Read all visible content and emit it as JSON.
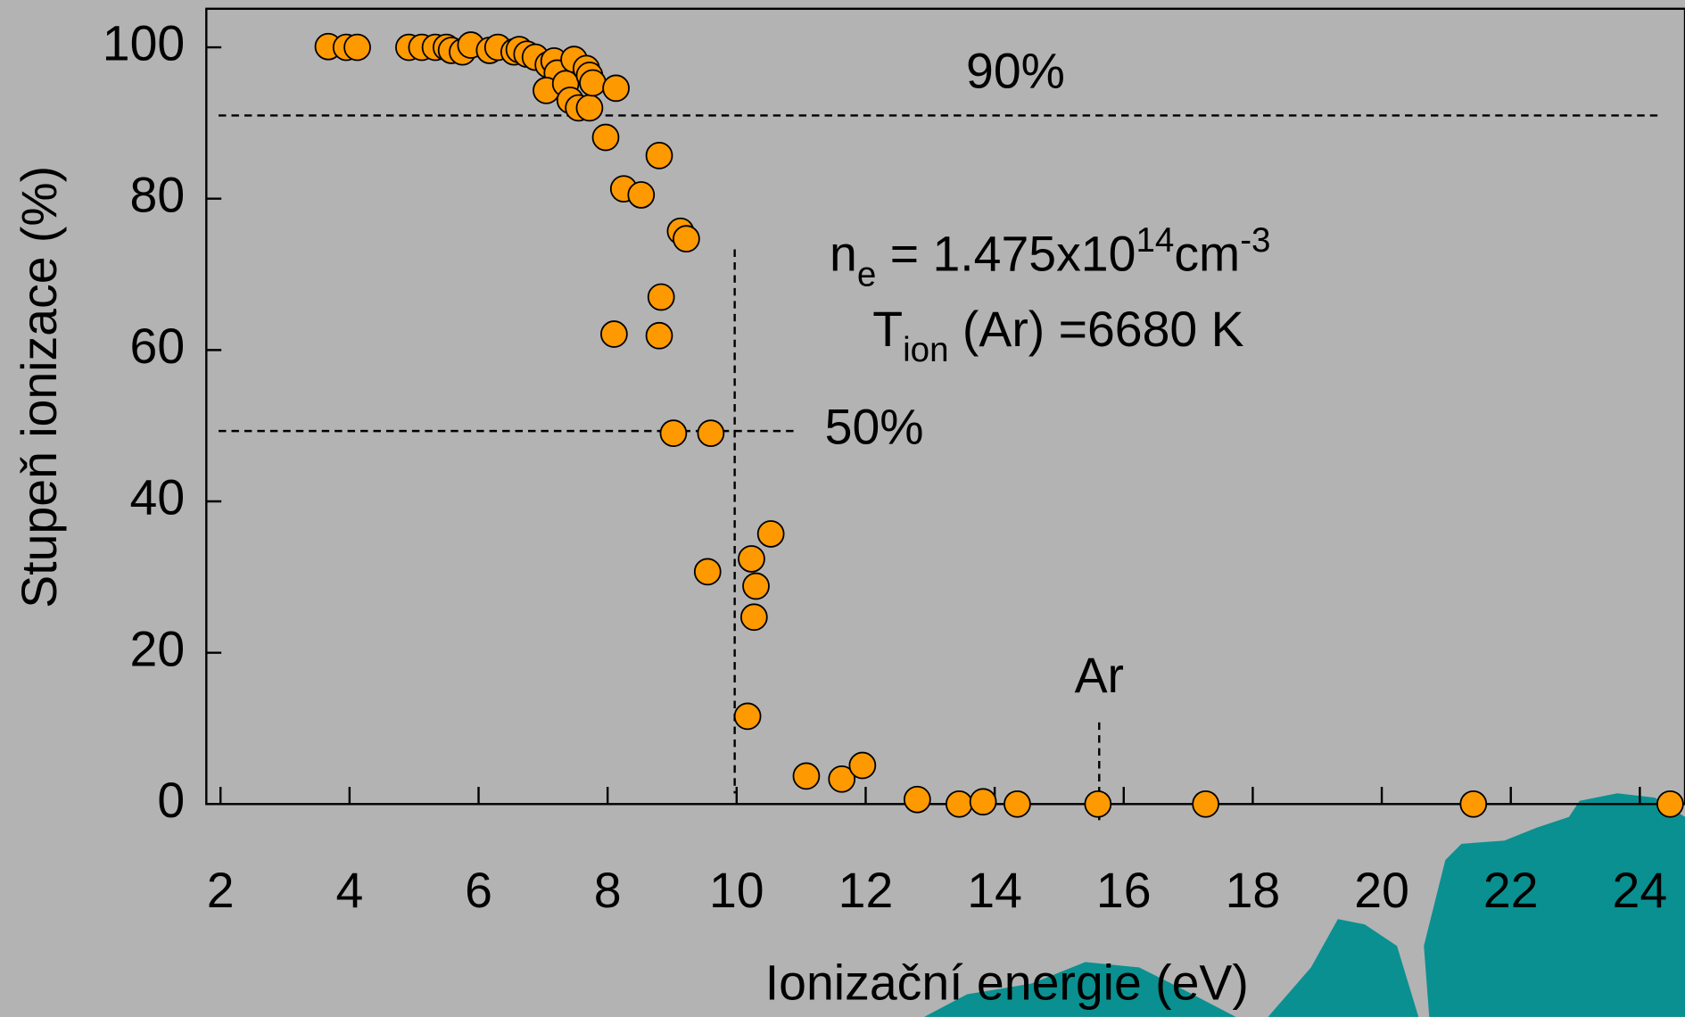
{
  "chart_data": {
    "type": "scatter",
    "x_label": "Ionizační energie (eV)",
    "y_label": "Stupeň ionizace (%)",
    "xlim": [
      1.78,
      24.7
    ],
    "ylim": [
      0,
      105.1
    ],
    "xticks": [
      2,
      4,
      6,
      8,
      10,
      12,
      14,
      16,
      18,
      20,
      22,
      24
    ],
    "yticks": [
      0,
      20,
      40,
      60,
      80,
      100
    ],
    "color": "#ff9900",
    "x": [
      3.67,
      3.95,
      4.12,
      4.92,
      5.12,
      5.33,
      5.5,
      5.58,
      5.75,
      5.88,
      6.17,
      6.3,
      6.55,
      6.63,
      6.75,
      6.88,
      7.08,
      7.17,
      7.22,
      7.05,
      7.35,
      7.42,
      7.48,
      7.55,
      7.67,
      7.72,
      7.72,
      7.77,
      8.13,
      7.97,
      8.25,
      8.52,
      8.8,
      9.13,
      9.22,
      8.83,
      8.1,
      8.8,
      9.02,
      9.6,
      9.55,
      10.53,
      10.23,
      10.3,
      10.27,
      10.17,
      11.08,
      11.63,
      11.95,
      12.8,
      13.45,
      13.82,
      14.35,
      15.6,
      17.27,
      21.42,
      24.47
    ],
    "values": [
      100.1,
      100,
      100,
      100,
      100,
      100,
      100,
      99.6,
      99.4,
      100.3,
      99.6,
      100,
      99.4,
      99.7,
      99.1,
      98.7,
      97.7,
      98.2,
      96.6,
      94.3,
      95.2,
      93,
      98.4,
      92,
      97.2,
      96.3,
      92,
      95.3,
      94.6,
      88.1,
      81.3,
      80.5,
      85.7,
      75.7,
      74.7,
      67,
      62.1,
      61.9,
      49,
      49,
      30.7,
      35.7,
      32.4,
      28.8,
      24.7,
      11.6,
      3.7,
      3.3,
      5.1,
      0.6,
      0,
      0.3,
      0,
      0,
      0,
      0,
      0
    ],
    "reference_lines": [
      {
        "label": "90%",
        "x": [
          1.97,
          24.3
        ],
        "y": [
          91,
          91
        ]
      },
      {
        "label": "50%",
        "x": [
          1.97,
          10.9
        ],
        "y": [
          49.3,
          49.3
        ]
      },
      {
        "x": [
          9.97,
          9.97
        ],
        "y": [
          73.3,
          1.4
        ]
      },
      {
        "label": "Ar",
        "x": [
          15.62,
          15.62
        ],
        "y": [
          10.8,
          -2.4
        ]
      }
    ],
    "ne_label": {
      "symbol": "n",
      "subscript": "e",
      "text": " = 1.475x10",
      "exponent": "14",
      "unit": "cm",
      "unit_exponent": "-3"
    },
    "t_label": {
      "symbol": "T",
      "subscript": "ion",
      "text": " (Ar) =6680 K"
    }
  }
}
